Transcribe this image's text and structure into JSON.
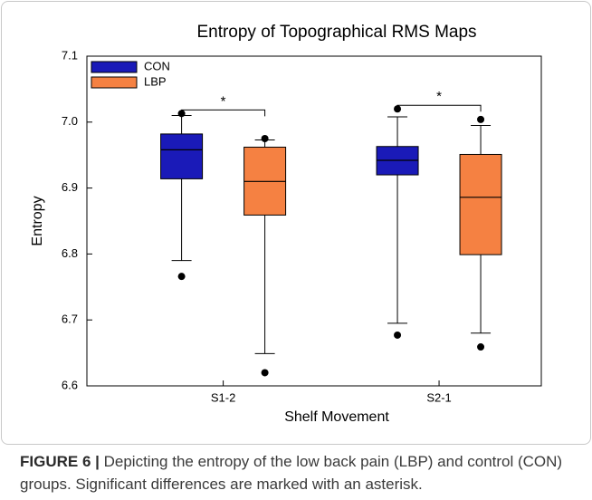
{
  "chart_data": {
    "type": "box",
    "title": "Entropy of Topographical RMS Maps",
    "xlabel": "Shelf Movement",
    "ylabel": "Entropy",
    "categories": [
      "S1-2",
      "S2-1"
    ],
    "series": [
      {
        "name": "CON",
        "color": "#1a1ab8",
        "stats": [
          {
            "whislo": 6.79,
            "q1": 6.914,
            "med": 6.958,
            "q3": 6.982,
            "whishi": 7.01,
            "fliers": [
              7.013,
              6.766
            ]
          },
          {
            "whislo": 6.695,
            "q1": 6.92,
            "med": 6.942,
            "q3": 6.963,
            "whishi": 7.008,
            "fliers": [
              7.02,
              6.677
            ]
          }
        ]
      },
      {
        "name": "LBP",
        "color": "#f58142",
        "stats": [
          {
            "whislo": 6.649,
            "q1": 6.859,
            "med": 6.91,
            "q3": 6.962,
            "whishi": 6.973,
            "fliers": [
              6.975,
              6.62
            ]
          },
          {
            "whislo": 6.68,
            "q1": 6.799,
            "med": 6.886,
            "q3": 6.951,
            "whishi": 6.995,
            "fliers": [
              7.004,
              6.659
            ]
          }
        ]
      }
    ],
    "ylim": [
      6.6,
      7.1
    ],
    "yticks": [
      6.6,
      6.7,
      6.8,
      6.9,
      {
        "value": 7.0,
        "label": "7.0"
      },
      7.1
    ],
    "annotations": [
      {
        "text": "*",
        "category": 0
      },
      {
        "text": "*",
        "category": 1
      }
    ],
    "legend": "upper left",
    "grid": false
  },
  "caption": {
    "label": "FIGURE 6 |",
    "text": "Depicting the entropy of the low back pain (LBP) and control (CON) groups. Significant differences are marked with an asterisk."
  }
}
